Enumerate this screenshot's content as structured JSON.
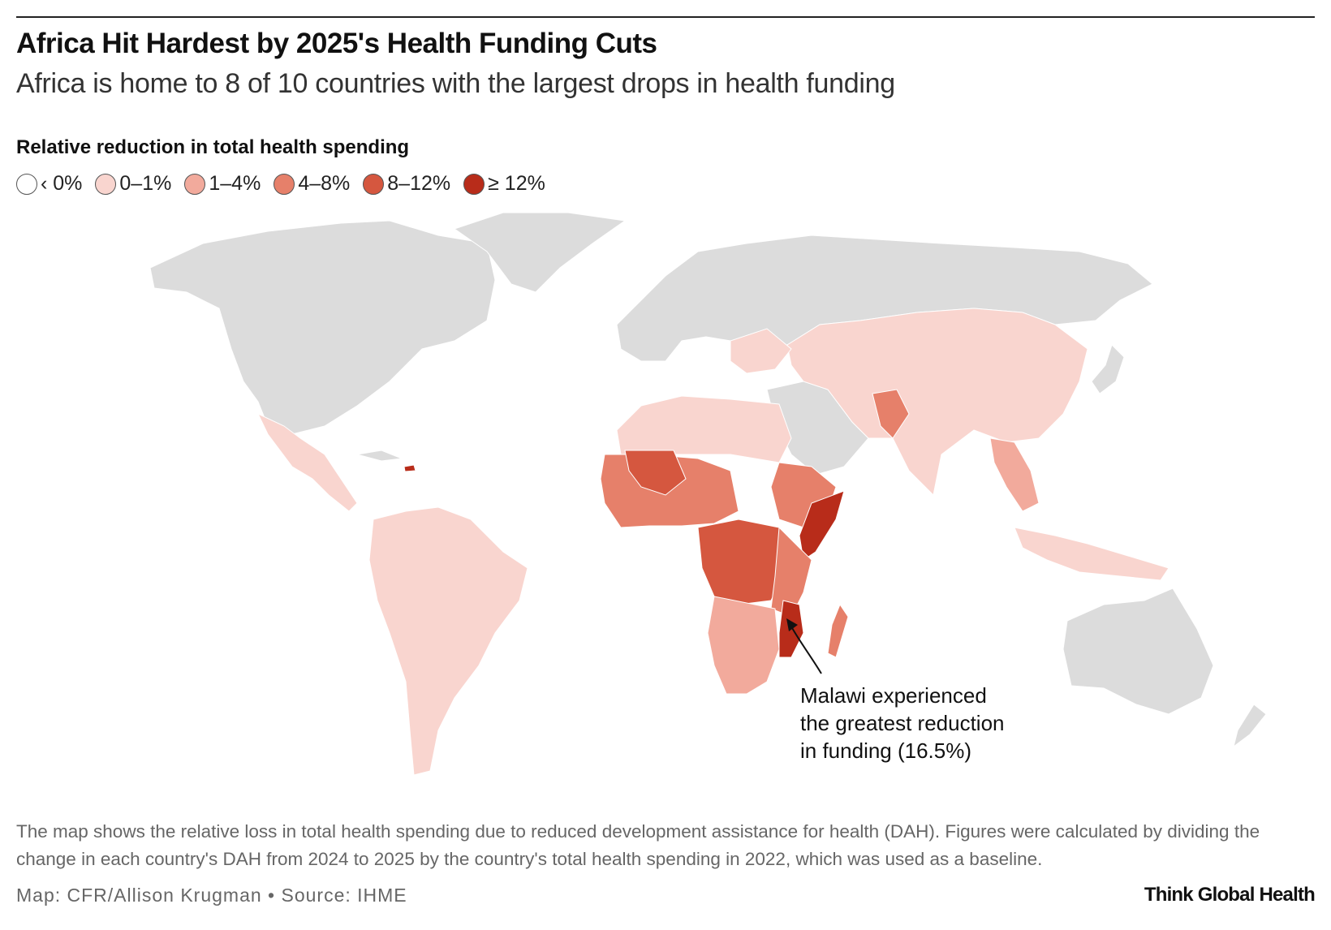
{
  "header": {
    "title": "Africa Hit Hardest by 2025's Health Funding Cuts",
    "subtitle": "Africa is home to 8 of 10 countries with the largest drops in health funding"
  },
  "legend": {
    "title": "Relative reduction in total health spending",
    "items": [
      {
        "label": "‹ 0%",
        "color": "#ffffff"
      },
      {
        "label": "0–1%",
        "color": "#f9d5cf"
      },
      {
        "label": "1–4%",
        "color": "#f2aa9c"
      },
      {
        "label": "4–8%",
        "color": "#e6806a"
      },
      {
        "label": "8–12%",
        "color": "#d5573f"
      },
      {
        "label": "≥ 12%",
        "color": "#b82c1a"
      }
    ]
  },
  "colors": {
    "no_data": "#dcdcdc",
    "background": "#ffffff"
  },
  "annotation": {
    "line1": "Malawi experienced",
    "line2": "the greatest reduction",
    "line3": "in funding (16.5%)"
  },
  "footer": {
    "note": "The map shows the relative loss in total health spending due to reduced development assistance for health (DAH). Figures were calculated by dividing the change in each country's DAH from 2024 to 2025 by the country's total health spending in 2022, which was used as a baseline.",
    "credit": "Map: CFR/Allison Krugman • Source: IHME",
    "brand": "Think Global Health"
  }
}
